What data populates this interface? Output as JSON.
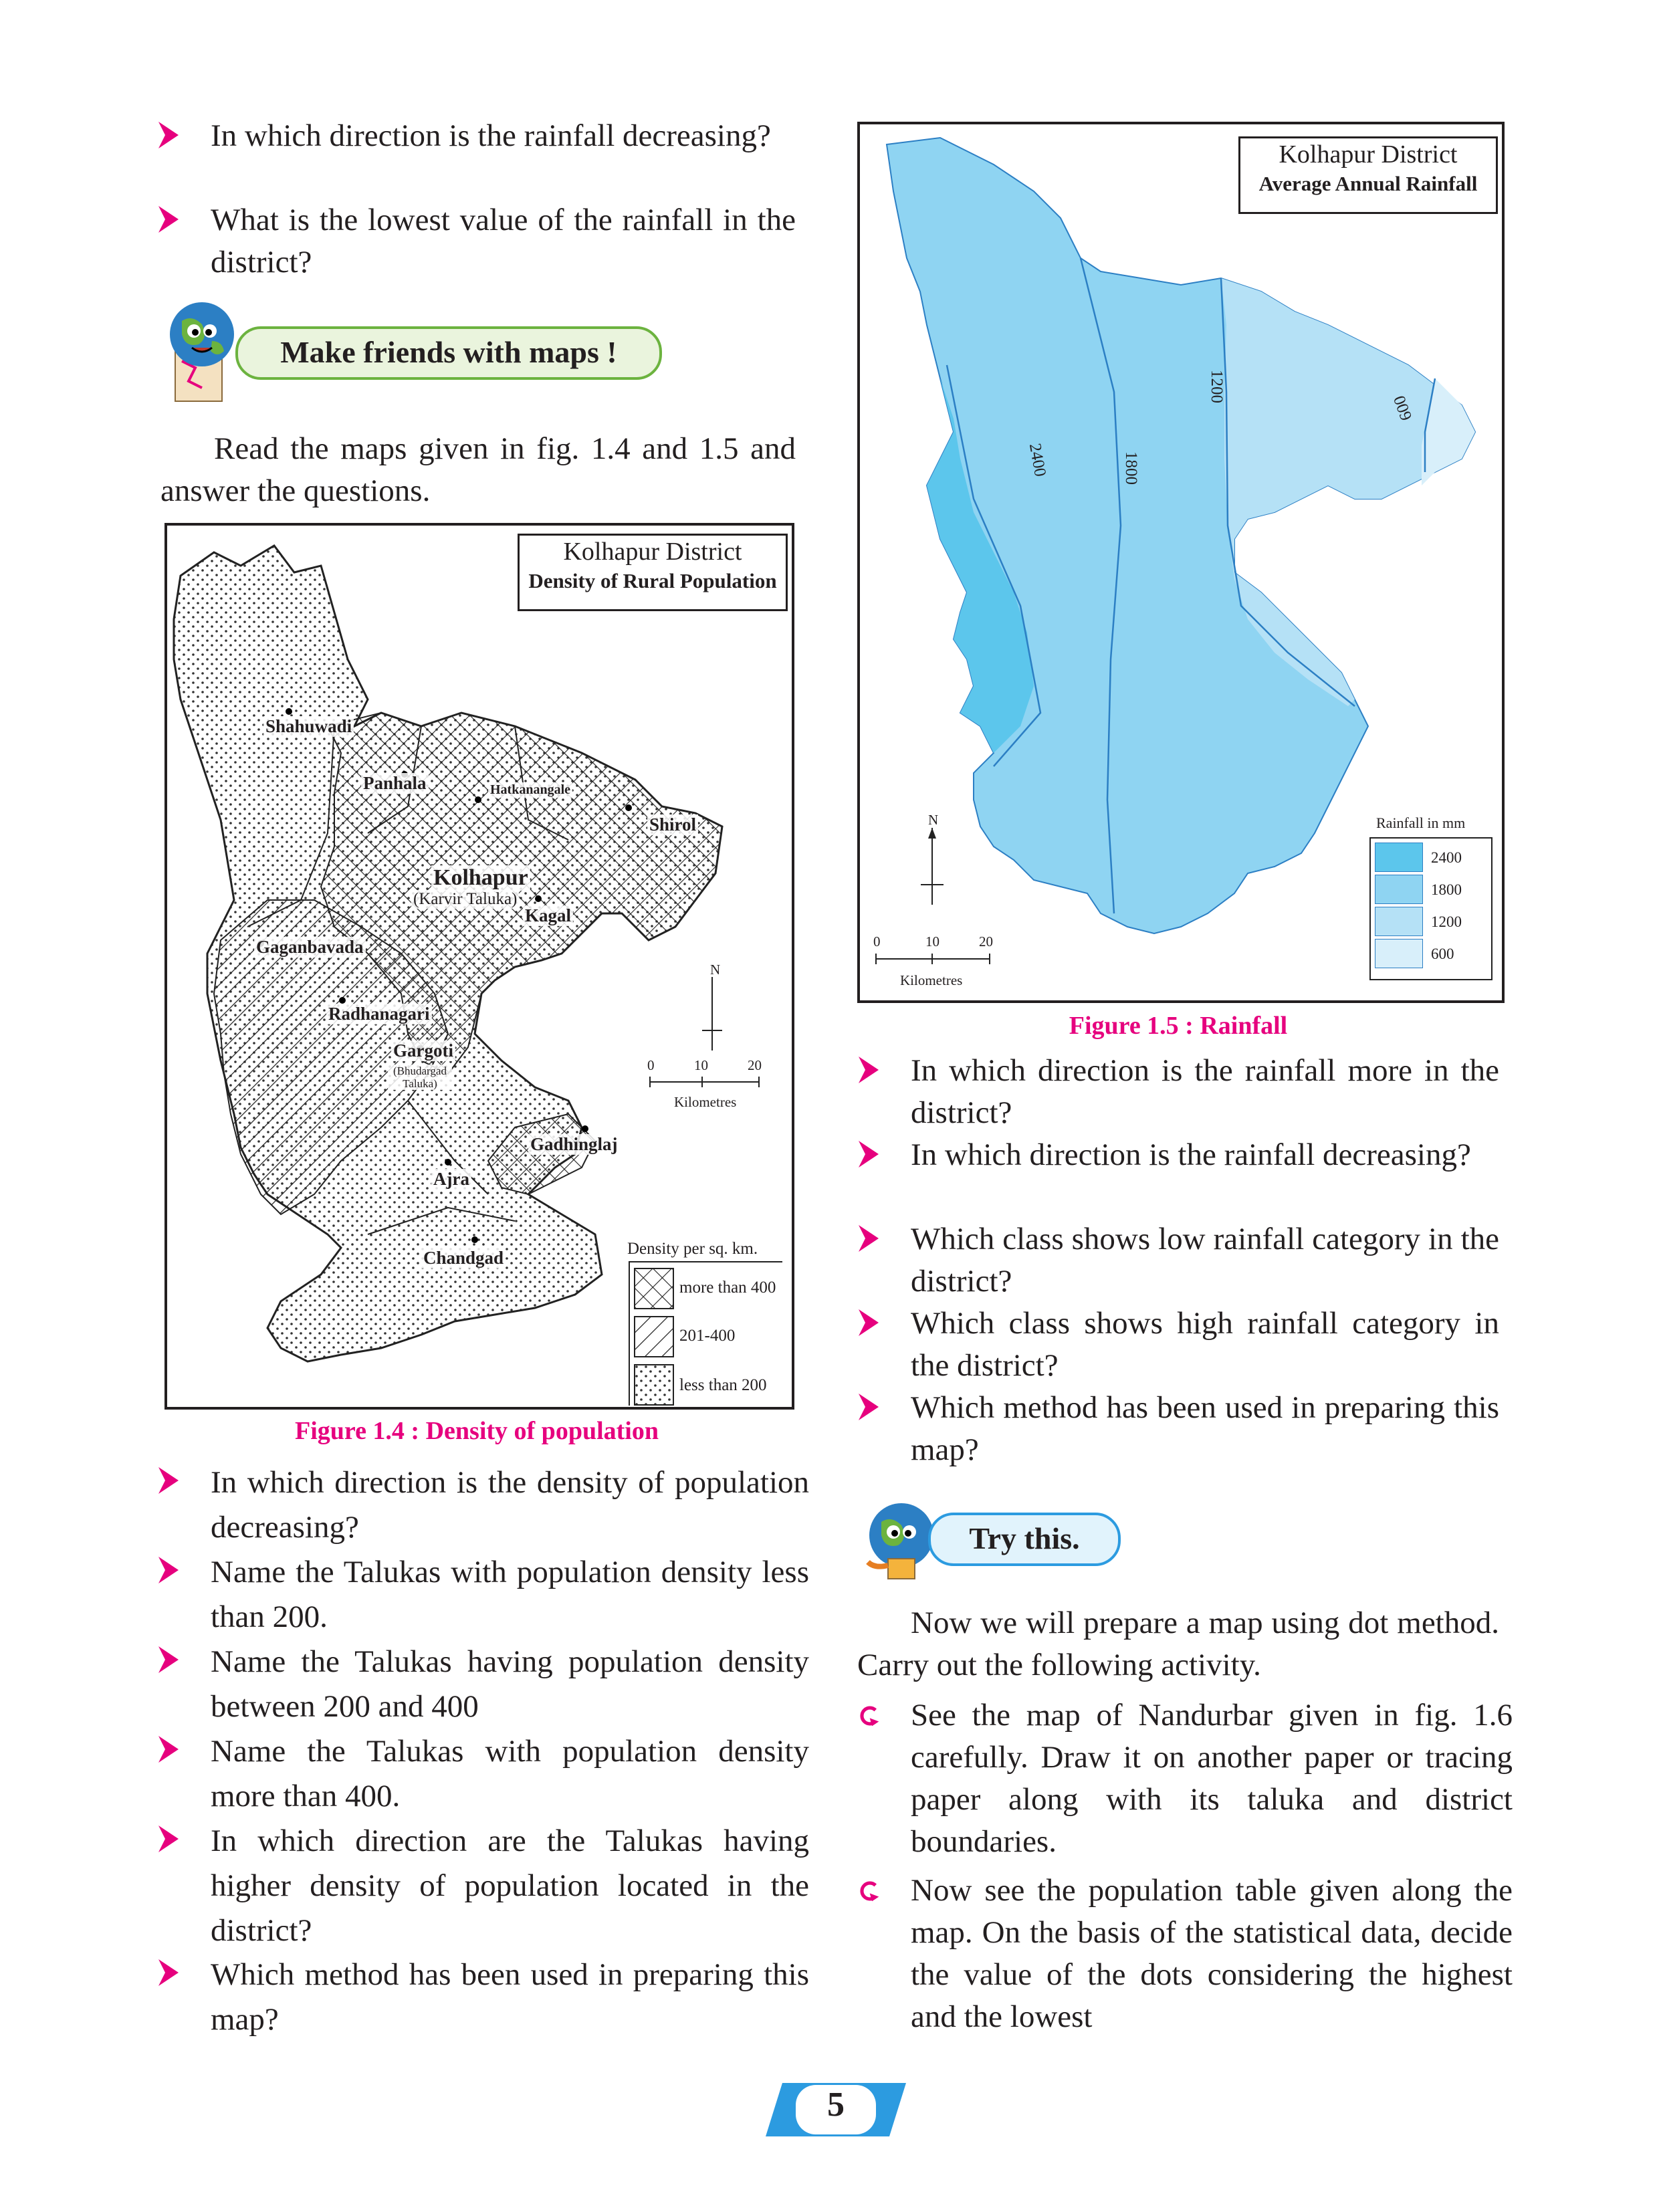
{
  "left_column": {
    "intro_bullets": [
      "In which direction is the rainfall decreasing?",
      "What is the lowest value of the rainfall in the district?"
    ],
    "section_banner": "Make friends with maps !",
    "paragraph": "Read the maps given in fig. 1.4 and 1.5 and answer the questions.",
    "figure_caption": "Figure 1.4 : Density of population",
    "questions": [
      "In which direction is the density of population decreasing?",
      "Name the Talukas with population density less than 200.",
      "Name the Talukas having population density between 200 and 400",
      "Name the Talukas with population density more than 400.",
      "In which direction are the Talukas having higher density of population located in the district?",
      "Which method has been used in preparing this map?"
    ]
  },
  "map_density": {
    "title_line1": "Kolhapur District",
    "title_line2": "Density of Rural Population",
    "talukas": {
      "shahuwadi": "Shahuwadi",
      "panhala": "Panhala",
      "hatkanangale": "Hatkanangale",
      "shirol": "Shirol",
      "kolhapur": "Kolhapur",
      "karvir": "(Karvir Taluka)",
      "kagal": "Kagal",
      "gaganbavada": "Gaganbavada",
      "radhanagari": "Radhanagari",
      "gargoti": "Gargoti",
      "bhudargad": "(Bhudargad Taluka)",
      "gadhinglaj": "Gadhinglaj",
      "ajra": "Ajra",
      "chandgad": "Chandgad"
    },
    "north": "N",
    "scale_ticks": [
      "0",
      "10",
      "20"
    ],
    "scale_unit": "Kilometres",
    "legend_title": "Density per sq. km.",
    "legend": [
      "more than 400",
      "201-400",
      "less than 200"
    ]
  },
  "map_rainfall": {
    "title_line1": "Kolhapur District",
    "title_line2": "Average Annual  Rainfall",
    "isohyets": [
      "2400",
      "1800",
      "1200",
      "600"
    ],
    "north": "N",
    "scale_ticks": [
      "0",
      "10",
      "20"
    ],
    "scale_unit": "Kilometres",
    "legend_title": "Rainfall in mm",
    "legend": [
      "2400",
      "1800",
      "1200",
      "600"
    ],
    "colors": {
      "c2400": "#5cc6ec",
      "c1800": "#8fd4f2",
      "c1200": "#b5e1f6",
      "c600": "#d8effa"
    }
  },
  "right_column": {
    "figure_caption": "Figure 1.5 : Rainfall",
    "questions": [
      "In which direction is the rainfall more in the district?",
      "In which direction is the rainfall decreasing?",
      "Which class shows low rainfall category in the district?",
      "Which class shows high rainfall category in the district?",
      "Which method has been used in preparing this map?"
    ],
    "section_banner": "Try this.",
    "paragraph": "Now we will prepare a map using dot method. Carry out the following activity.",
    "steps": [
      "See the map of Nandurbar given in fig. 1.6 carefully. Draw it on another paper or tracing paper along with its taluka  and district boundaries.",
      "Now see the population table given along the map. On the basis of the statistical data, decide the value of the dots considering the highest and the lowest"
    ]
  },
  "page_number": "5"
}
